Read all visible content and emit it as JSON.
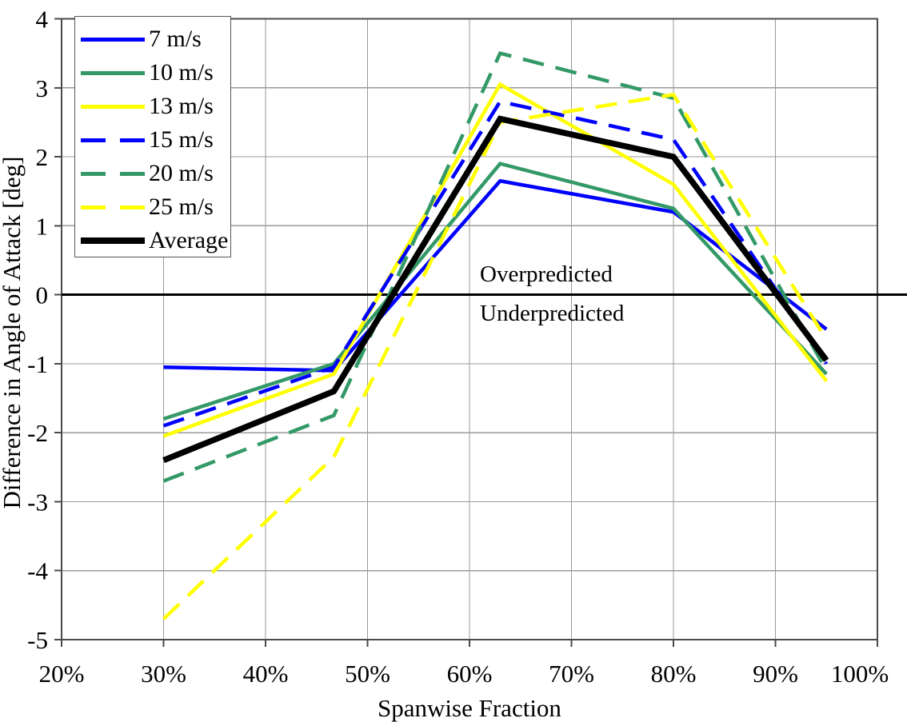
{
  "chart_data": {
    "type": "line",
    "title": "",
    "xlabel": "Spanwise Fraction",
    "ylabel": "Difference in Angle of Attack [deg]",
    "xlim": [
      20,
      100
    ],
    "ylim": [
      -5,
      4
    ],
    "grid": true,
    "legend_position": "top-left",
    "x_ticks": [
      {
        "value": 20,
        "label": "20%"
      },
      {
        "value": 30,
        "label": "30%"
      },
      {
        "value": 40,
        "label": "40%"
      },
      {
        "value": 50,
        "label": "50%"
      },
      {
        "value": 60,
        "label": "60%"
      },
      {
        "value": 70,
        "label": "70%"
      },
      {
        "value": 80,
        "label": "80%"
      },
      {
        "value": 90,
        "label": "90%"
      },
      {
        "value": 100,
        "label": "100%"
      }
    ],
    "y_ticks": [
      {
        "value": 4,
        "label": "4"
      },
      {
        "value": 3,
        "label": "3"
      },
      {
        "value": 2,
        "label": "2"
      },
      {
        "value": 1,
        "label": "1"
      },
      {
        "value": 0,
        "label": "0"
      },
      {
        "value": -1,
        "label": "-1"
      },
      {
        "value": -2,
        "label": "-2"
      },
      {
        "value": -3,
        "label": "-3"
      },
      {
        "value": -4,
        "label": "-4"
      },
      {
        "value": -5,
        "label": "-5"
      }
    ],
    "x": [
      30,
      46.7,
      63,
      80,
      95
    ],
    "series": [
      {
        "name": "7 m/s",
        "color": "#0000FF",
        "dash": false,
        "width": 4.5,
        "values": [
          -1.05,
          -1.1,
          1.65,
          1.2,
          -0.5
        ]
      },
      {
        "name": "10 m/s",
        "color": "#339966",
        "dash": false,
        "width": 4.5,
        "values": [
          -1.8,
          -1.0,
          1.9,
          1.25,
          -1.15
        ]
      },
      {
        "name": "13 m/s",
        "color": "#FFFF00",
        "dash": false,
        "width": 4.5,
        "values": [
          -2.05,
          -1.15,
          3.05,
          1.6,
          -1.25
        ]
      },
      {
        "name": "15 m/s",
        "color": "#0000FF",
        "dash": true,
        "width": 4.5,
        "values": [
          -1.9,
          -1.05,
          2.8,
          2.25,
          -1.0
        ]
      },
      {
        "name": "20 m/s",
        "color": "#339966",
        "dash": true,
        "width": 4.5,
        "values": [
          -2.7,
          -1.75,
          3.5,
          2.85,
          -1.1
        ]
      },
      {
        "name": "25 m/s",
        "color": "#FFFF00",
        "dash": true,
        "width": 4.5,
        "values": [
          -4.7,
          -2.35,
          2.5,
          2.9,
          -0.65
        ]
      },
      {
        "name": "Average",
        "color": "#000000",
        "dash": false,
        "width": 7.5,
        "values": [
          -2.4,
          -1.4,
          2.55,
          2.0,
          -0.95
        ]
      }
    ],
    "zero_line": true,
    "annotations": {
      "above_zero": "Overpredicted",
      "below_zero": "Underpredicted"
    }
  },
  "style_colors": {
    "gridline": "#9a9a9a",
    "border": "#4a4a4a",
    "zero_line": "#000000",
    "background": "#ffffff"
  }
}
